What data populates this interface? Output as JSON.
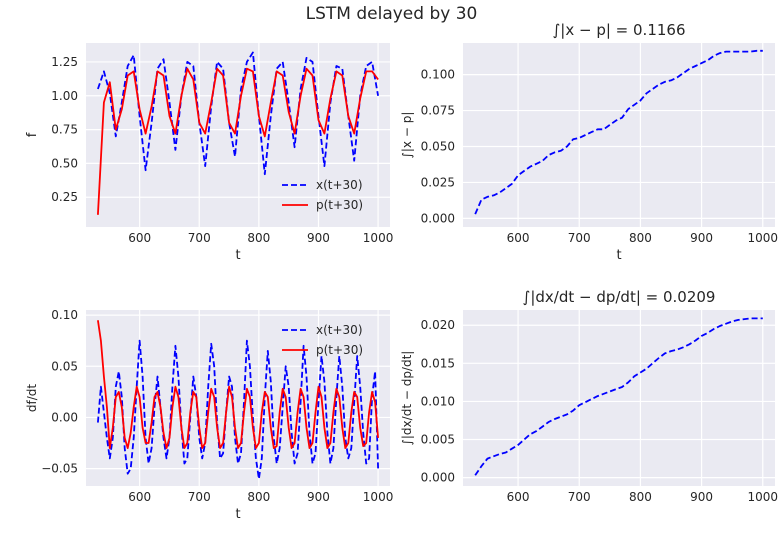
{
  "figure": {
    "suptitle": "LSTM delayed by 30"
  },
  "chart_data": [
    {
      "id": "f",
      "type": "line",
      "title": "",
      "xlabel": "t",
      "ylabel": "f",
      "xlim": [
        510,
        1020
      ],
      "ylim": [
        0.03,
        1.39
      ],
      "xticks": [
        600,
        700,
        800,
        900,
        1000
      ],
      "yticks": [
        0.25,
        0.5,
        0.75,
        1.0,
        1.25
      ],
      "ytick_labels": [
        "0.25",
        "0.50",
        "0.75",
        "1.00",
        "1.25"
      ],
      "grid": true,
      "legend": "lower-right",
      "x": [
        530,
        540,
        550,
        560,
        570,
        580,
        590,
        600,
        610,
        620,
        630,
        640,
        650,
        660,
        670,
        680,
        690,
        700,
        710,
        720,
        730,
        740,
        750,
        760,
        770,
        780,
        790,
        800,
        810,
        820,
        830,
        840,
        850,
        860,
        870,
        880,
        890,
        900,
        910,
        920,
        930,
        940,
        950,
        960,
        970,
        980,
        990,
        1000
      ],
      "series": [
        {
          "name": "x(t+30)",
          "style": "dashed",
          "color": "#0000ff",
          "values": [
            1.05,
            1.18,
            1.02,
            0.7,
            0.95,
            1.22,
            1.3,
            0.85,
            0.45,
            0.8,
            1.2,
            1.27,
            0.95,
            0.6,
            1.0,
            1.25,
            1.22,
            0.8,
            0.48,
            0.92,
            1.25,
            1.2,
            0.8,
            0.55,
            1.05,
            1.25,
            1.32,
            0.85,
            0.42,
            0.85,
            1.2,
            1.25,
            0.95,
            0.62,
            1.05,
            1.28,
            1.25,
            0.85,
            0.48,
            0.95,
            1.22,
            1.2,
            0.85,
            0.52,
            1.0,
            1.22,
            1.25,
            1.0
          ]
        },
        {
          "name": "p(t+30)",
          "style": "solid",
          "color": "#ff0000",
          "values": [
            0.12,
            0.95,
            1.1,
            0.75,
            0.9,
            1.15,
            1.18,
            0.9,
            0.72,
            0.92,
            1.18,
            1.15,
            0.85,
            0.72,
            1.0,
            1.2,
            1.12,
            0.8,
            0.72,
            0.95,
            1.2,
            1.15,
            0.8,
            0.72,
            1.0,
            1.2,
            1.18,
            0.85,
            0.7,
            0.95,
            1.18,
            1.15,
            0.88,
            0.72,
            1.0,
            1.2,
            1.15,
            0.82,
            0.72,
            0.98,
            1.18,
            1.15,
            0.85,
            0.72,
            0.98,
            1.18,
            1.18,
            1.12
          ]
        }
      ]
    },
    {
      "id": "cum_abs_diff",
      "type": "line",
      "title": "∫|x − p| = 0.1166",
      "xlabel": "t",
      "ylabel": "∫|x − p|",
      "xlim": [
        510,
        1020
      ],
      "ylim": [
        -0.006,
        0.122
      ],
      "xticks": [
        600,
        700,
        800,
        900,
        1000
      ],
      "yticks": [
        0.0,
        0.025,
        0.05,
        0.075,
        0.1
      ],
      "ytick_labels": [
        "0.000",
        "0.025",
        "0.050",
        "0.075",
        "0.100"
      ],
      "grid": true,
      "series": [
        {
          "name": "",
          "style": "dashed",
          "color": "#0000ff",
          "x": [
            530,
            540,
            550,
            560,
            570,
            580,
            590,
            600,
            610,
            620,
            630,
            640,
            650,
            660,
            670,
            680,
            690,
            700,
            710,
            720,
            730,
            740,
            750,
            760,
            770,
            780,
            790,
            800,
            810,
            820,
            830,
            840,
            850,
            860,
            870,
            880,
            890,
            900,
            910,
            920,
            930,
            940,
            950,
            960,
            970,
            980,
            990,
            1000
          ],
          "values": [
            0.003,
            0.013,
            0.015,
            0.016,
            0.018,
            0.021,
            0.024,
            0.03,
            0.033,
            0.036,
            0.038,
            0.04,
            0.044,
            0.046,
            0.047,
            0.05,
            0.055,
            0.056,
            0.058,
            0.06,
            0.062,
            0.062,
            0.065,
            0.068,
            0.07,
            0.076,
            0.079,
            0.082,
            0.087,
            0.09,
            0.093,
            0.095,
            0.096,
            0.098,
            0.101,
            0.104,
            0.106,
            0.108,
            0.11,
            0.113,
            0.115,
            0.116,
            0.116,
            0.116,
            0.116,
            0.116,
            0.1166,
            0.1166
          ]
        }
      ]
    },
    {
      "id": "df",
      "type": "line",
      "title": "",
      "xlabel": "t",
      "ylabel": "df/dt",
      "xlim": [
        510,
        1020
      ],
      "ylim": [
        -0.067,
        0.105
      ],
      "xticks": [
        600,
        700,
        800,
        900,
        1000
      ],
      "yticks": [
        -0.05,
        0.0,
        0.05,
        0.1
      ],
      "ytick_labels": [
        "−0.05",
        "0.00",
        "0.05",
        "0.10"
      ],
      "grid": true,
      "legend": "upper-right",
      "x": [
        530,
        535,
        540,
        545,
        550,
        555,
        560,
        565,
        570,
        575,
        580,
        585,
        590,
        595,
        600,
        605,
        610,
        615,
        620,
        625,
        630,
        635,
        640,
        645,
        650,
        655,
        660,
        665,
        670,
        675,
        680,
        685,
        690,
        695,
        700,
        705,
        710,
        715,
        720,
        725,
        730,
        735,
        740,
        745,
        750,
        755,
        760,
        765,
        770,
        775,
        780,
        785,
        790,
        795,
        800,
        805,
        810,
        815,
        820,
        825,
        830,
        835,
        840,
        845,
        850,
        855,
        860,
        865,
        870,
        875,
        880,
        885,
        890,
        895,
        900,
        905,
        910,
        915,
        920,
        925,
        930,
        935,
        940,
        945,
        950,
        955,
        960,
        965,
        970,
        975,
        980,
        985,
        990,
        995,
        1000
      ],
      "series": [
        {
          "name": "x(t+30)",
          "style": "dashed",
          "color": "#0000ff",
          "values": [
            -0.005,
            0.03,
            0.005,
            -0.02,
            -0.04,
            -0.02,
            0.03,
            0.045,
            0.02,
            -0.03,
            -0.055,
            -0.05,
            -0.02,
            0.03,
            0.075,
            0.04,
            -0.02,
            -0.045,
            -0.03,
            0.01,
            0.04,
            0.01,
            -0.02,
            -0.04,
            -0.02,
            0.03,
            0.07,
            0.04,
            -0.01,
            -0.045,
            -0.04,
            0.0,
            0.04,
            0.02,
            -0.02,
            -0.04,
            -0.025,
            0.03,
            0.072,
            0.05,
            -0.005,
            -0.04,
            -0.035,
            0.005,
            0.04,
            0.03,
            -0.02,
            -0.045,
            -0.035,
            0.015,
            0.075,
            0.05,
            0.0,
            -0.04,
            -0.06,
            -0.04,
            0.02,
            0.065,
            0.035,
            -0.02,
            -0.045,
            -0.03,
            0.01,
            0.05,
            0.03,
            -0.015,
            -0.045,
            -0.035,
            0.015,
            0.07,
            0.04,
            -0.015,
            -0.045,
            -0.035,
            0.015,
            0.06,
            0.035,
            -0.015,
            -0.045,
            -0.03,
            0.02,
            0.06,
            0.03,
            -0.02,
            -0.04,
            -0.03,
            0.015,
            0.06,
            0.03,
            -0.015,
            -0.045,
            -0.04,
            0.02,
            0.045,
            -0.05
          ]
        },
        {
          "name": "p(t+30)",
          "style": "solid",
          "color": "#ff0000",
          "values": [
            0.095,
            0.075,
            0.04,
            0.01,
            -0.03,
            -0.01,
            0.02,
            0.025,
            0.01,
            -0.02,
            -0.03,
            -0.015,
            0.01,
            0.03,
            0.02,
            -0.01,
            -0.025,
            -0.025,
            -0.005,
            0.02,
            0.025,
            0.01,
            -0.015,
            -0.03,
            -0.02,
            0.01,
            0.03,
            0.02,
            -0.01,
            -0.03,
            -0.025,
            0.005,
            0.025,
            0.02,
            -0.01,
            -0.03,
            -0.025,
            0.005,
            0.028,
            0.02,
            -0.01,
            -0.03,
            -0.025,
            0.005,
            0.03,
            0.02,
            -0.01,
            -0.03,
            -0.025,
            0.005,
            0.028,
            0.02,
            -0.01,
            -0.03,
            -0.025,
            0.005,
            0.025,
            0.02,
            -0.01,
            -0.03,
            -0.028,
            0.005,
            0.028,
            0.02,
            -0.01,
            -0.03,
            -0.025,
            0.005,
            0.028,
            0.02,
            -0.01,
            -0.03,
            -0.025,
            0.005,
            0.03,
            0.02,
            -0.01,
            -0.03,
            -0.025,
            0.005,
            0.028,
            0.02,
            -0.01,
            -0.03,
            -0.025,
            0.005,
            0.025,
            0.02,
            -0.01,
            -0.028,
            -0.025,
            0.005,
            0.025,
            0.015,
            -0.02
          ]
        }
      ]
    },
    {
      "id": "cum_abs_ddiff",
      "type": "line",
      "title": "∫|dx/dt − dp/dt| = 0.0209",
      "xlabel": "",
      "ylabel": "∫|dx/dt − dp/dt|",
      "xlim": [
        510,
        1020
      ],
      "ylim": [
        -0.0011,
        0.022
      ],
      "xticks": [
        600,
        700,
        800,
        900,
        1000
      ],
      "yticks": [
        0.0,
        0.005,
        0.01,
        0.015,
        0.02
      ],
      "ytick_labels": [
        "0.000",
        "0.005",
        "0.010",
        "0.015",
        "0.020"
      ],
      "grid": true,
      "series": [
        {
          "name": "",
          "style": "dashed",
          "color": "#0000ff",
          "x": [
            530,
            540,
            550,
            560,
            570,
            580,
            590,
            600,
            610,
            620,
            630,
            640,
            650,
            660,
            670,
            680,
            690,
            700,
            710,
            720,
            730,
            740,
            750,
            760,
            770,
            780,
            790,
            800,
            810,
            820,
            830,
            840,
            850,
            860,
            870,
            880,
            890,
            900,
            910,
            920,
            930,
            940,
            950,
            960,
            970,
            980,
            990,
            1000
          ],
          "values": [
            0.0003,
            0.0015,
            0.0025,
            0.0028,
            0.0031,
            0.0033,
            0.0038,
            0.0043,
            0.005,
            0.0057,
            0.0061,
            0.0067,
            0.0073,
            0.0077,
            0.008,
            0.0083,
            0.0088,
            0.0095,
            0.0099,
            0.0103,
            0.0107,
            0.011,
            0.0113,
            0.0116,
            0.0119,
            0.0125,
            0.0133,
            0.0138,
            0.0143,
            0.015,
            0.0157,
            0.0163,
            0.0166,
            0.0168,
            0.0171,
            0.0175,
            0.018,
            0.0186,
            0.019,
            0.0195,
            0.0199,
            0.0202,
            0.0205,
            0.0207,
            0.0208,
            0.0209,
            0.0209,
            0.0209
          ]
        }
      ]
    }
  ]
}
